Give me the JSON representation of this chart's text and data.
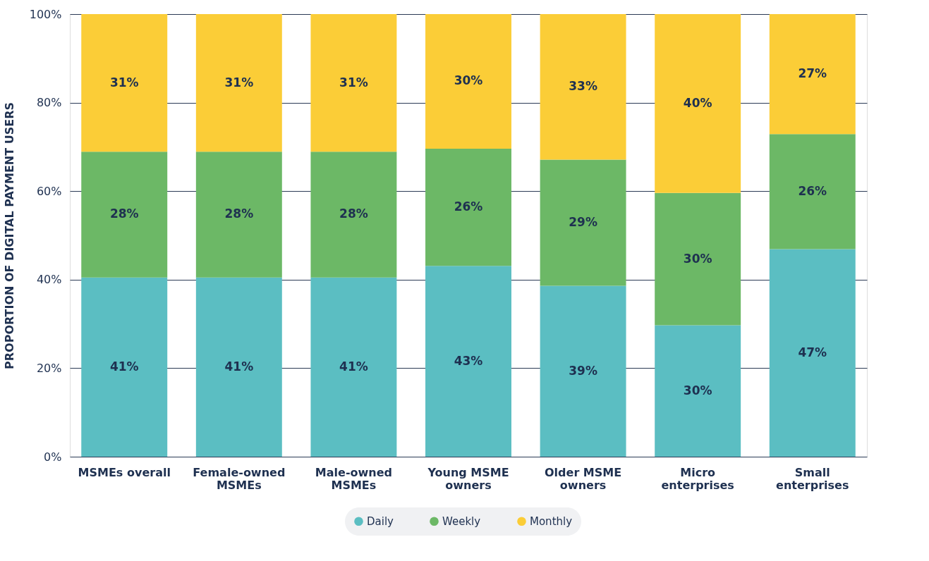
{
  "chart_data": {
    "type": "bar",
    "stacked": true,
    "ylabel": "PROPORTION OF DIGITAL PAYMENT USERS",
    "categories": [
      "MSMEs overall",
      "Female-owned\nMSMEs",
      "Male-owned\nMSMEs",
      "Young MSME\nowners",
      "Older MSME\nowners",
      "Micro\nenterprises",
      "Small\nenterprises"
    ],
    "series": [
      {
        "name": "Daily",
        "color": "#5bbec2",
        "values": [
          40.5,
          40.5,
          40.5,
          43.1,
          38.6,
          29.7,
          46.9
        ],
        "value_labels": [
          "41%",
          "41%",
          "41%",
          "43%",
          "39%",
          "30%",
          "47%"
        ]
      },
      {
        "name": "Weekly",
        "color": "#6cb866",
        "values": [
          28.4,
          28.4,
          28.4,
          26.5,
          28.5,
          29.9,
          26.0
        ],
        "value_labels": [
          "28%",
          "28%",
          "28%",
          "26%",
          "29%",
          "30%",
          "26%"
        ]
      },
      {
        "name": "Monthly",
        "color": "#fbcd37",
        "values": [
          31.1,
          31.1,
          31.1,
          30.4,
          32.9,
          40.4,
          27.1
        ],
        "value_labels": [
          "31%",
          "31%",
          "31%",
          "30%",
          "33%",
          "40%",
          "27%"
        ]
      }
    ],
    "ylim": [
      0,
      100
    ],
    "yticks": [
      {
        "value": 0,
        "label": "0%"
      },
      {
        "value": 20,
        "label": "20%"
      },
      {
        "value": 40,
        "label": "40%"
      },
      {
        "value": 60,
        "label": "60%"
      },
      {
        "value": 80,
        "label": "80%"
      },
      {
        "value": 100,
        "label": "100%"
      }
    ],
    "grid": "y",
    "legend": "bottom"
  }
}
